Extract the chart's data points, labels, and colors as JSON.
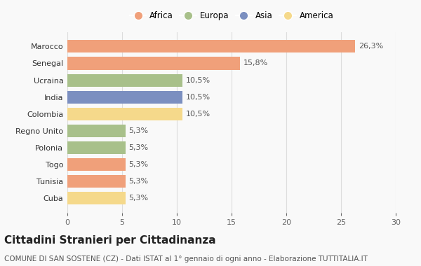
{
  "categories": [
    "Cuba",
    "Tunisia",
    "Togo",
    "Polonia",
    "Regno Unito",
    "Colombia",
    "India",
    "Ucraina",
    "Senegal",
    "Marocco"
  ],
  "values": [
    5.3,
    5.3,
    5.3,
    5.3,
    5.3,
    10.5,
    10.5,
    10.5,
    15.8,
    26.3
  ],
  "bar_colors": [
    "#F5D98B",
    "#F0A07A",
    "#F0A07A",
    "#A8C08A",
    "#A8C08A",
    "#F5D98B",
    "#7B8FC0",
    "#A8C08A",
    "#F0A07A",
    "#F0A07A"
  ],
  "labels": [
    "5,3%",
    "5,3%",
    "5,3%",
    "5,3%",
    "5,3%",
    "10,5%",
    "10,5%",
    "10,5%",
    "15,8%",
    "26,3%"
  ],
  "legend": [
    {
      "label": "Africa",
      "color": "#F0A07A"
    },
    {
      "label": "Europa",
      "color": "#A8C08A"
    },
    {
      "label": "Asia",
      "color": "#7B8FC0"
    },
    {
      "label": "America",
      "color": "#F5D98B"
    }
  ],
  "xlim": [
    0,
    30
  ],
  "xticks": [
    0,
    5,
    10,
    15,
    20,
    25,
    30
  ],
  "title": "Cittadini Stranieri per Cittadinanza",
  "subtitle": "COMUNE DI SAN SOSTENE (CZ) - Dati ISTAT al 1° gennaio di ogni anno - Elaborazione TUTTITALIA.IT",
  "background_color": "#f9f9f9",
  "grid_color": "#dddddd",
  "bar_height": 0.75,
  "label_fontsize": 8,
  "tick_fontsize": 8,
  "ylabel_fontsize": 8,
  "title_fontsize": 11,
  "subtitle_fontsize": 7.5
}
